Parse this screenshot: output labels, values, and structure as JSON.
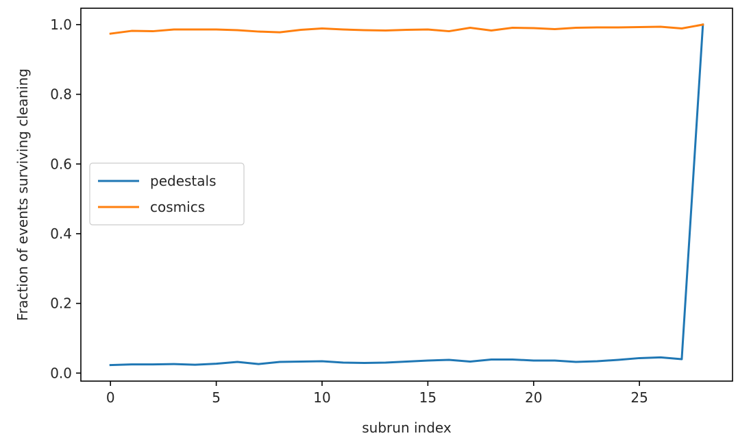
{
  "chart_data": {
    "type": "line",
    "title": "",
    "xlabel": "subrun index",
    "ylabel": "Fraction of events surviving cleaning",
    "xlim": [
      -1.4,
      29.4
    ],
    "ylim": [
      -0.023,
      1.047
    ],
    "xticks": [
      0,
      5,
      10,
      15,
      20,
      25
    ],
    "xtick_labels": [
      "0",
      "5",
      "10",
      "15",
      "20",
      "25"
    ],
    "yticks": [
      0.0,
      0.2,
      0.4,
      0.6,
      0.8,
      1.0
    ],
    "ytick_labels": [
      "0.0",
      "0.2",
      "0.4",
      "0.6",
      "0.8",
      "1.0"
    ],
    "grid": false,
    "legend_position": "center-left",
    "x": [
      0,
      1,
      2,
      3,
      4,
      5,
      6,
      7,
      8,
      9,
      10,
      11,
      12,
      13,
      14,
      15,
      16,
      17,
      18,
      19,
      20,
      21,
      22,
      23,
      24,
      25,
      26,
      27,
      28
    ],
    "series": [
      {
        "name": "pedestals",
        "color": "#1f77b4",
        "values": [
          0.023,
          0.025,
          0.025,
          0.026,
          0.024,
          0.027,
          0.032,
          0.026,
          0.032,
          0.033,
          0.034,
          0.03,
          0.029,
          0.03,
          0.033,
          0.036,
          0.038,
          0.033,
          0.039,
          0.039,
          0.036,
          0.036,
          0.032,
          0.034,
          0.038,
          0.043,
          0.045,
          0.04,
          1.0
        ]
      },
      {
        "name": "cosmics",
        "color": "#ff7f0e",
        "values": [
          0.974,
          0.982,
          0.981,
          0.986,
          0.986,
          0.986,
          0.984,
          0.98,
          0.978,
          0.985,
          0.989,
          0.986,
          0.984,
          0.983,
          0.985,
          0.986,
          0.981,
          0.991,
          0.983,
          0.991,
          0.99,
          0.987,
          0.991,
          0.992,
          0.992,
          0.993,
          0.994,
          0.989,
          1.0
        ]
      }
    ]
  }
}
